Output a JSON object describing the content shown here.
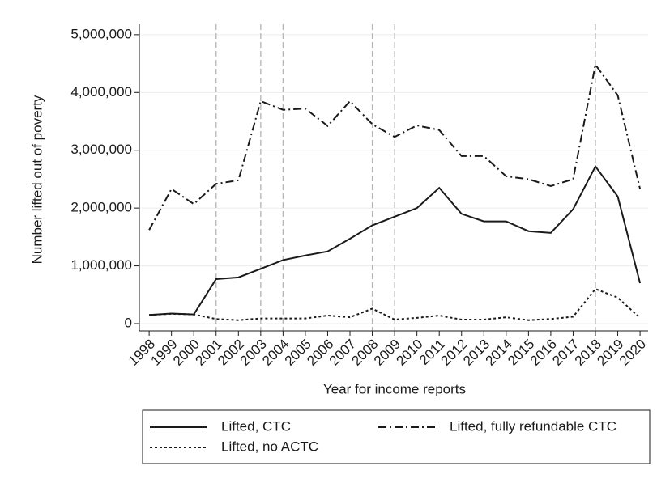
{
  "chart_data": {
    "type": "line",
    "x_label": "Year for income reports",
    "y_label": "Number lifted out of poverty",
    "x": [
      1998,
      1999,
      2000,
      2001,
      2002,
      2003,
      2004,
      2005,
      2006,
      2007,
      2008,
      2009,
      2010,
      2011,
      2012,
      2013,
      2014,
      2015,
      2016,
      2017,
      2018,
      2019,
      2020
    ],
    "xlim": [
      1997.56,
      2020.36
    ],
    "xticks": [
      1998,
      1999,
      2000,
      2001,
      2002,
      2003,
      2004,
      2005,
      2006,
      2007,
      2008,
      2009,
      2010,
      2011,
      2012,
      2013,
      2014,
      2015,
      2016,
      2017,
      2018,
      2019,
      2020
    ],
    "ylim": [
      -126000,
      5180000
    ],
    "yticks": [
      0,
      {
        "value": 1000000,
        "label": "1,000,000"
      },
      {
        "value": 2000000,
        "label": "2,000,000"
      },
      {
        "value": 3000000,
        "label": "3,000,000"
      },
      {
        "value": 4000000,
        "label": "4,000,000"
      },
      {
        "value": 5000000,
        "label": "5,000,000"
      }
    ],
    "grid": true,
    "vlines": [
      2001,
      2003,
      2004,
      2008,
      2009,
      2018
    ],
    "legend": "bottom",
    "series": [
      {
        "name": "Lifted, CTC",
        "color": "#1a1a1a",
        "dash": "solid",
        "values": [
          150000,
          175000,
          160000,
          770000,
          800000,
          950000,
          1100000,
          1180000,
          1250000,
          1470000,
          1700000,
          1850000,
          2000000,
          2350000,
          1900000,
          1770000,
          1770000,
          1600000,
          1570000,
          1980000,
          2720000,
          2200000,
          700000
        ]
      },
      {
        "name": "Lifted, fully refundable CTC",
        "color": "#1a1a1a",
        "dash": "dashdot",
        "values": [
          1620000,
          2330000,
          2070000,
          2420000,
          2480000,
          3850000,
          3700000,
          3720000,
          3420000,
          3850000,
          3450000,
          3230000,
          3430000,
          3350000,
          2900000,
          2900000,
          2550000,
          2500000,
          2380000,
          2500000,
          4480000,
          3950000,
          2330000
        ]
      },
      {
        "name": "Lifted, no ACTC",
        "color": "#1a1a1a",
        "dash": "dot",
        "values": [
          150000,
          170000,
          160000,
          80000,
          60000,
          90000,
          90000,
          90000,
          140000,
          110000,
          260000,
          70000,
          100000,
          140000,
          70000,
          70000,
          110000,
          60000,
          80000,
          120000,
          600000,
          450000,
          100000
        ]
      }
    ]
  }
}
